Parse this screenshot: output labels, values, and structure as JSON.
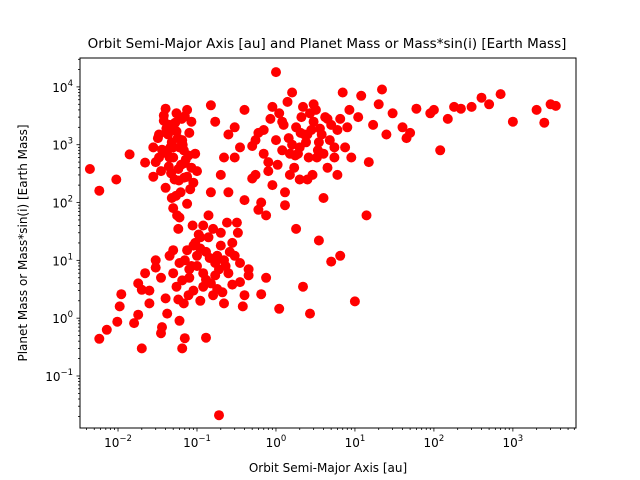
{
  "chart_data": {
    "type": "scatter",
    "title": "Orbit Semi-Major Axis [au] and Planet Mass or Mass*sin(i) [Earth Mass]",
    "xlabel": "Orbit Semi-Major Axis [au]",
    "ylabel": "Planet Mass or Mass*sin(i) [Earth Mass]",
    "xscale": "log",
    "yscale": "log",
    "xlim": [
      0.0033,
      6300
    ],
    "ylim": [
      0.0126,
      31600
    ],
    "x_ticks": [
      {
        "value": 0.01,
        "base": "10",
        "exp": "−2"
      },
      {
        "value": 0.1,
        "base": "10",
        "exp": "−1"
      },
      {
        "value": 1,
        "base": "10",
        "exp": "0"
      },
      {
        "value": 10,
        "base": "10",
        "exp": "1"
      },
      {
        "value": 100,
        "base": "10",
        "exp": "2"
      },
      {
        "value": 1000,
        "base": "10",
        "exp": "3"
      }
    ],
    "y_ticks": [
      {
        "value": 0.1,
        "base": "10",
        "exp": "−1"
      },
      {
        "value": 1,
        "base": "10",
        "exp": "0"
      },
      {
        "value": 10,
        "base": "10",
        "exp": "1"
      },
      {
        "value": 100,
        "base": "10",
        "exp": "2"
      },
      {
        "value": 1000,
        "base": "10",
        "exp": "3"
      },
      {
        "value": 10000,
        "base": "10",
        "exp": "4"
      }
    ],
    "grid": false,
    "legend": "none",
    "marker_color": "#ff0000",
    "points": [
      [
        0.0044,
        380
      ],
      [
        0.0058,
        0.44
      ],
      [
        0.0058,
        160
      ],
      [
        0.0072,
        0.63
      ],
      [
        0.0095,
        250
      ],
      [
        0.0098,
        0.87
      ],
      [
        0.0105,
        1.6
      ],
      [
        0.011,
        2.6
      ],
      [
        0.014,
        680
      ],
      [
        0.016,
        0.82
      ],
      [
        0.018,
        1.15
      ],
      [
        0.02,
        0.3
      ],
      [
        0.02,
        3.1
      ],
      [
        0.022,
        490
      ],
      [
        0.025,
        1.8
      ],
      [
        0.028,
        900
      ],
      [
        0.03,
        7.5
      ],
      [
        0.033,
        1500
      ],
      [
        0.035,
        0.55
      ],
      [
        0.036,
        0.7
      ],
      [
        0.038,
        3200
      ],
      [
        0.04,
        4200
      ],
      [
        0.042,
        1.2
      ],
      [
        0.045,
        600
      ],
      [
        0.048,
        120
      ],
      [
        0.05,
        15
      ],
      [
        0.055,
        3500
      ],
      [
        0.06,
        0.9
      ],
      [
        0.065,
        0.3
      ],
      [
        0.07,
        0.45
      ],
      [
        0.075,
        4000
      ],
      [
        0.08,
        7
      ],
      [
        0.085,
        2500
      ],
      [
        0.09,
        18
      ],
      [
        0.1,
        8
      ],
      [
        0.11,
        25
      ],
      [
        0.12,
        3.5
      ],
      [
        0.13,
        0.46
      ],
      [
        0.14,
        60
      ],
      [
        0.15,
        4800
      ],
      [
        0.16,
        2.5
      ],
      [
        0.18,
        12
      ],
      [
        0.19,
        0.021
      ],
      [
        0.2,
        30
      ],
      [
        0.22,
        1.8
      ],
      [
        0.25,
        150
      ],
      [
        0.28,
        3.8
      ],
      [
        0.3,
        600
      ],
      [
        0.32,
        45
      ],
      [
        0.35,
        9
      ],
      [
        0.38,
        1.6
      ],
      [
        0.4,
        110
      ],
      [
        0.45,
        5.5
      ],
      [
        0.5,
        260
      ],
      [
        0.55,
        1200
      ],
      [
        0.6,
        75
      ],
      [
        0.65,
        2.6
      ],
      [
        0.7,
        1800
      ],
      [
        0.75,
        5
      ],
      [
        0.8,
        350
      ],
      [
        0.9,
        4500
      ],
      [
        1.0,
        18000
      ],
      [
        1.1,
        1.45
      ],
      [
        1.2,
        2500
      ],
      [
        1.3,
        90
      ],
      [
        1.5,
        700
      ],
      [
        1.6,
        8000
      ],
      [
        1.8,
        35
      ],
      [
        2.0,
        250
      ],
      [
        2.2,
        3.5
      ],
      [
        2.5,
        1500
      ],
      [
        2.7,
        1.2
      ],
      [
        3.0,
        5000
      ],
      [
        3.3,
        600
      ],
      [
        3.5,
        22
      ],
      [
        4.0,
        120
      ],
      [
        4.5,
        2800
      ],
      [
        5.0,
        9.5
      ],
      [
        5.5,
        900
      ],
      [
        6.0,
        300
      ],
      [
        6.5,
        12
      ],
      [
        7.0,
        8000
      ],
      [
        8.0,
        2000
      ],
      [
        9.0,
        600
      ],
      [
        10.0,
        1.95
      ],
      [
        11.0,
        3000
      ],
      [
        12.0,
        7000
      ],
      [
        14.0,
        60
      ],
      [
        15.0,
        500
      ],
      [
        17.0,
        2200
      ],
      [
        20.0,
        5000
      ],
      [
        22.0,
        9000
      ],
      [
        25.0,
        1500
      ],
      [
        30.0,
        3500
      ],
      [
        40.0,
        2000
      ],
      [
        45.0,
        1300
      ],
      [
        50.0,
        1600
      ],
      [
        60.0,
        4200
      ],
      [
        90.0,
        3500
      ],
      [
        100.0,
        4000
      ],
      [
        120.0,
        800
      ],
      [
        150.0,
        2800
      ],
      [
        180.0,
        4500
      ],
      [
        220.0,
        4200
      ],
      [
        300.0,
        4500
      ],
      [
        400.0,
        6500
      ],
      [
        500.0,
        5000
      ],
      [
        700.0,
        7500
      ],
      [
        1000.0,
        2500
      ],
      [
        2000.0,
        4000
      ],
      [
        2500.0,
        2400
      ],
      [
        3000.0,
        5000
      ],
      [
        3500.0,
        4700
      ],
      [
        0.045,
        2200
      ],
      [
        0.05,
        600
      ],
      [
        0.04,
        180
      ],
      [
        0.055,
        1700
      ],
      [
        0.06,
        900
      ],
      [
        0.035,
        350
      ],
      [
        0.065,
        1200
      ],
      [
        0.07,
        480
      ],
      [
        0.042,
        700
      ],
      [
        0.052,
        250
      ],
      [
        0.048,
        1100
      ],
      [
        0.058,
        380
      ],
      [
        0.038,
        2600
      ],
      [
        0.062,
        150
      ],
      [
        0.068,
        800
      ],
      [
        0.075,
        280
      ],
      [
        0.08,
        1600
      ],
      [
        0.072,
        550
      ],
      [
        0.046,
        900
      ],
      [
        0.054,
        130
      ],
      [
        0.03,
        500
      ],
      [
        0.032,
        1300
      ],
      [
        0.085,
        400
      ],
      [
        0.09,
        220
      ],
      [
        0.095,
        700
      ],
      [
        0.1,
        350
      ],
      [
        0.05,
        80
      ],
      [
        0.056,
        60
      ],
      [
        0.064,
        2800
      ],
      [
        0.044,
        420
      ],
      [
        0.041,
        1900
      ],
      [
        0.047,
        320
      ],
      [
        0.053,
        2400
      ],
      [
        0.059,
        240
      ],
      [
        0.066,
        1000
      ],
      [
        0.078,
        650
      ],
      [
        0.036,
        820
      ],
      [
        0.028,
        280
      ],
      [
        0.033,
        600
      ],
      [
        0.07,
        3100
      ],
      [
        0.06,
        55
      ],
      [
        0.075,
        95
      ],
      [
        0.082,
        170
      ],
      [
        0.058,
        35
      ],
      [
        0.05,
        900
      ],
      [
        0.043,
        1500
      ],
      [
        0.063,
        450
      ],
      [
        0.069,
        270
      ],
      [
        0.049,
        2000
      ],
      [
        0.057,
        1300
      ],
      [
        0.07,
        10
      ],
      [
        0.08,
        5
      ],
      [
        0.09,
        3
      ],
      [
        0.1,
        12
      ],
      [
        0.12,
        6
      ],
      [
        0.13,
        14
      ],
      [
        0.15,
        4
      ],
      [
        0.17,
        9
      ],
      [
        0.11,
        2
      ],
      [
        0.095,
        20
      ],
      [
        0.085,
        8
      ],
      [
        0.075,
        15
      ],
      [
        0.065,
        4.5
      ],
      [
        0.06,
        9
      ],
      [
        0.055,
        3.5
      ],
      [
        0.05,
        6
      ],
      [
        0.045,
        12
      ],
      [
        0.04,
        2.2
      ],
      [
        0.035,
        5
      ],
      [
        0.03,
        10
      ],
      [
        0.025,
        3
      ],
      [
        0.022,
        6
      ],
      [
        0.018,
        4
      ],
      [
        0.14,
        25
      ],
      [
        0.16,
        35
      ],
      [
        0.2,
        18
      ],
      [
        0.22,
        10
      ],
      [
        0.25,
        6
      ],
      [
        0.28,
        20
      ],
      [
        0.3,
        12
      ],
      [
        0.18,
        3.2
      ],
      [
        0.19,
        7
      ],
      [
        0.21,
        2.8
      ],
      [
        0.12,
        40
      ],
      [
        0.105,
        28
      ],
      [
        0.088,
        40
      ],
      [
        0.078,
        2.5
      ],
      [
        0.068,
        1.8
      ],
      [
        0.058,
        2.1
      ],
      [
        0.11,
        16
      ],
      [
        0.13,
        4.6
      ],
      [
        0.145,
        11
      ],
      [
        0.17,
        5.5
      ],
      [
        0.23,
        8
      ],
      [
        0.26,
        14
      ],
      [
        0.35,
        4.2
      ],
      [
        0.4,
        2.5
      ],
      [
        0.45,
        7
      ],
      [
        0.33,
        30
      ],
      [
        0.24,
        45
      ],
      [
        0.8,
        500
      ],
      [
        1.0,
        1200
      ],
      [
        1.2,
        800
      ],
      [
        1.5,
        300
      ],
      [
        1.8,
        2000
      ],
      [
        2.0,
        900
      ],
      [
        2.3,
        1500
      ],
      [
        2.6,
        600
      ],
      [
        3.0,
        2500
      ],
      [
        3.5,
        1100
      ],
      [
        4.0,
        700
      ],
      [
        1.1,
        3500
      ],
      [
        1.4,
        5500
      ],
      [
        1.7,
        400
      ],
      [
        2.1,
        3000
      ],
      [
        2.5,
        250
      ],
      [
        2.8,
        1800
      ],
      [
        3.2,
        4000
      ],
      [
        3.8,
        1500
      ],
      [
        4.5,
        400
      ],
      [
        5.0,
        2200
      ],
      [
        0.9,
        200
      ],
      [
        0.7,
        700
      ],
      [
        0.6,
        1600
      ],
      [
        1.3,
        150
      ],
      [
        1.6,
        1000
      ],
      [
        1.9,
        700
      ],
      [
        2.2,
        4500
      ],
      [
        2.7,
        3500
      ],
      [
        3.4,
        800
      ],
      [
        4.2,
        3000
      ],
      [
        5.5,
        600
      ],
      [
        6.0,
        1800
      ],
      [
        0.85,
        2800
      ],
      [
        1.05,
        450
      ],
      [
        1.25,
        2200
      ],
      [
        1.45,
        1300
      ],
      [
        1.75,
        650
      ],
      [
        2.05,
        1600
      ],
      [
        2.4,
        1100
      ],
      [
        2.9,
        300
      ],
      [
        3.6,
        1900
      ],
      [
        4.8,
        1200
      ],
      [
        6.5,
        2800
      ],
      [
        7.5,
        900
      ],
      [
        8.5,
        4000
      ],
      [
        0.55,
        300
      ],
      [
        0.65,
        100
      ],
      [
        0.75,
        60
      ],
      [
        0.5,
        950
      ],
      [
        0.3,
        2000
      ],
      [
        0.35,
        900
      ],
      [
        0.4,
        4000
      ],
      [
        0.25,
        1500
      ],
      [
        0.22,
        600
      ],
      [
        0.2,
        300
      ],
      [
        0.17,
        2500
      ],
      [
        0.15,
        150
      ]
    ]
  }
}
